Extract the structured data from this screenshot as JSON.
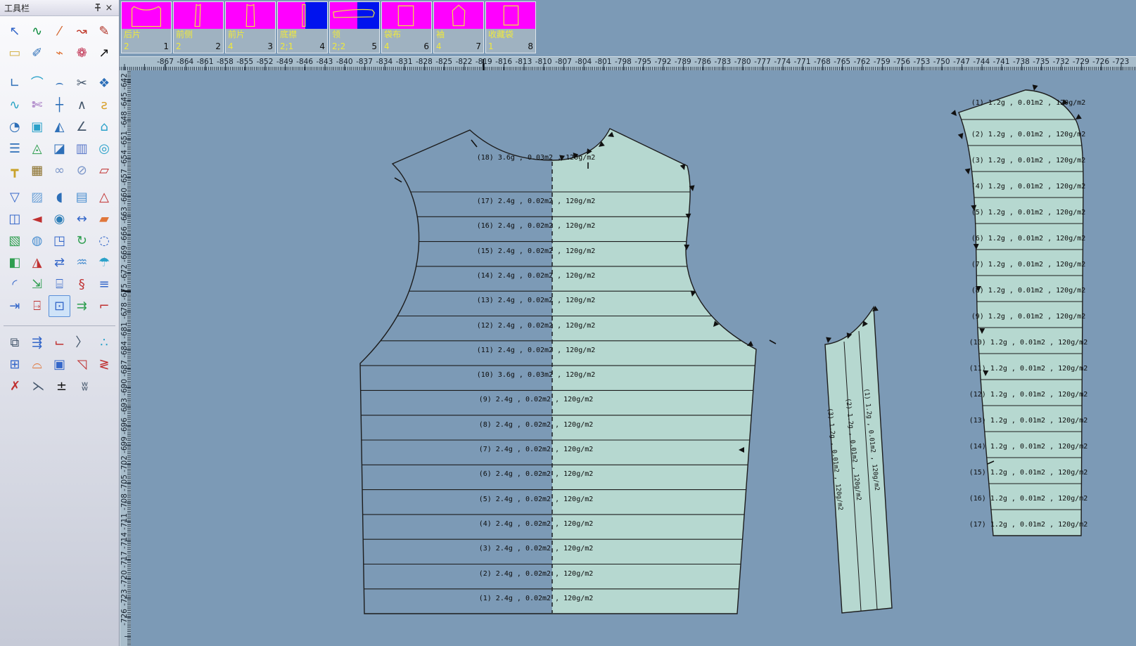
{
  "panel": {
    "title": "工具栏",
    "close_label": "×"
  },
  "toolbar": {
    "icons": [
      {
        "name": "pointer-select",
        "glyph": "↖",
        "color": "#3467c9"
      },
      {
        "name": "bezier-edit",
        "glyph": "∿",
        "color": "#0b8a3c"
      },
      {
        "name": "sketch-line",
        "glyph": "⁄",
        "color": "#d2622a"
      },
      {
        "name": "curve-handle",
        "glyph": "↝",
        "color": "#c0392b"
      },
      {
        "name": "pencil",
        "glyph": "✎",
        "color": "#b03024"
      },
      {
        "name": "eraser",
        "glyph": "▭",
        "color": "#d4b24a"
      },
      {
        "name": "pen-node",
        "glyph": "✐",
        "color": "#2d6fb8"
      },
      {
        "name": "point-segment",
        "glyph": "⌁",
        "color": "#e0763a"
      },
      {
        "name": "ribbon-tool",
        "glyph": "❁",
        "color": "#c03050"
      },
      {
        "name": "point-arrow",
        "glyph": "↗",
        "color": "#111111"
      },
      {
        "name": "corner-angle",
        "glyph": "∟",
        "color": "#2d6fb8"
      },
      {
        "name": "arc-tool",
        "glyph": "⌒",
        "color": "#2aa1c9"
      },
      {
        "name": "arc-nodes",
        "glyph": "⌢",
        "color": "#2d6fb8"
      },
      {
        "name": "scissors",
        "glyph": "✂",
        "color": "#44566b"
      },
      {
        "name": "seal-badge",
        "glyph": "❖",
        "color": "#2d6fb8"
      },
      {
        "name": "chain-points",
        "glyph": "∿",
        "color": "#27a3c4"
      },
      {
        "name": "snip-piece",
        "glyph": "✄",
        "color": "#8a4fb0"
      },
      {
        "name": "crosshair",
        "glyph": "┼",
        "color": "#2d6fb8"
      },
      {
        "name": "compass",
        "glyph": "∧",
        "color": "#44566b"
      },
      {
        "name": "measure-curve",
        "glyph": "ƨ",
        "color": "#d8a02a"
      },
      {
        "name": "protractor",
        "glyph": "◔",
        "color": "#2d6fb8"
      },
      {
        "name": "group-boxes",
        "glyph": "▣",
        "color": "#2aa1c9"
      },
      {
        "name": "mirror-triangle",
        "glyph": "◭",
        "color": "#2d6fb8"
      },
      {
        "name": "angle-measure",
        "glyph": "∠",
        "color": "#44566b"
      },
      {
        "name": "pattern-cut",
        "glyph": "⌂",
        "color": "#2aa1c9"
      },
      {
        "name": "line-styles",
        "glyph": "☰",
        "color": "#2d6fb8"
      },
      {
        "name": "dart-fold",
        "glyph": "◬",
        "color": "#2e9e4f"
      },
      {
        "name": "piece-shade",
        "glyph": "◪",
        "color": "#2d6fb8"
      },
      {
        "name": "pleat-tool",
        "glyph": "▥",
        "color": "#5b79c9"
      },
      {
        "name": "spiral-tool",
        "glyph": "◎",
        "color": "#2aa1c9"
      },
      {
        "name": "t-square",
        "glyph": "┳",
        "color": "#c9a22a"
      },
      {
        "name": "seam-gauge",
        "glyph": "▦",
        "color": "#8a6f2a"
      },
      {
        "name": "link-tool",
        "glyph": "∞",
        "color": "#7b96c9"
      },
      {
        "name": "unlink-tool",
        "glyph": "⊘",
        "color": "#7b96c9"
      },
      {
        "name": "pocket-dashed",
        "glyph": "▱",
        "color": "#c03030"
      },
      {
        "name": "pocket-flap",
        "glyph": "▽",
        "color": "#3467c9"
      },
      {
        "name": "quilt-piece",
        "glyph": "▨",
        "color": "#6fa3d8"
      },
      {
        "name": "notch-piece",
        "glyph": "◖",
        "color": "#2d6fb8"
      },
      {
        "name": "stripe-piece",
        "glyph": "▤",
        "color": "#4a8fd0"
      },
      {
        "name": "red-outline-piece",
        "glyph": "△",
        "color": "#c03030"
      },
      {
        "name": "divide-piece",
        "glyph": "◫",
        "color": "#3467c9"
      },
      {
        "name": "arrow-piece",
        "glyph": "◄",
        "color": "#c03030"
      },
      {
        "name": "button-tool",
        "glyph": "◉",
        "color": "#2e7fb8"
      },
      {
        "name": "width-arrows",
        "glyph": "↔",
        "color": "#3467c9"
      },
      {
        "name": "orange-piece",
        "glyph": "▰",
        "color": "#e0763a"
      },
      {
        "name": "terrain-piece",
        "glyph": "▧",
        "color": "#2e9e4f"
      },
      {
        "name": "collar-rounds",
        "glyph": "◍",
        "color": "#4a8fd0"
      },
      {
        "name": "small-piece",
        "glyph": "◳",
        "color": "#3467c9"
      },
      {
        "name": "rotate-piece",
        "glyph": "↻",
        "color": "#2e9e4f"
      },
      {
        "name": "dotted-piece",
        "glyph": "◌",
        "color": "#3467c9"
      },
      {
        "name": "pair-pieces",
        "glyph": "◧",
        "color": "#2e9e4f"
      },
      {
        "name": "red-mark-piece",
        "glyph": "◮",
        "color": "#c03030"
      },
      {
        "name": "swap-pieces",
        "glyph": "⇄",
        "color": "#3467c9"
      },
      {
        "name": "curtain-drape",
        "glyph": "♒",
        "color": "#4a8fd0"
      },
      {
        "name": "beach-scene",
        "glyph": "☂",
        "color": "#2aa1c9"
      },
      {
        "name": "quad-curve",
        "glyph": "◜",
        "color": "#3467c9"
      },
      {
        "name": "measure-points",
        "glyph": "⇲",
        "color": "#2e9e4f"
      },
      {
        "name": "sewing-machine",
        "glyph": "⌸",
        "color": "#3467c9"
      },
      {
        "name": "s-hooks",
        "glyph": "§",
        "color": "#c03030"
      },
      {
        "name": "fabric-stack",
        "glyph": "≡",
        "color": "#3467c9"
      },
      {
        "name": "door-arrow",
        "glyph": "⇥",
        "color": "#3467c9"
      },
      {
        "name": "anchor-dash",
        "glyph": "⍈",
        "color": "#c03030"
      },
      {
        "name": "marquee-select",
        "glyph": "⊡",
        "color": "#3467c9",
        "selected": true
      },
      {
        "name": "seam-inward",
        "glyph": "⇉",
        "color": "#2e9e4f"
      },
      {
        "name": "seam-corner",
        "glyph": "⌐",
        "color": "#c03030"
      },
      {
        "name": "overlap-pieces",
        "glyph": "⧉",
        "color": "#44566b"
      },
      {
        "name": "fly-arrows",
        "glyph": "⇶",
        "color": "#3467c9"
      },
      {
        "name": "piece-corner",
        "glyph": "⌙",
        "color": "#c03030"
      },
      {
        "name": "curve-notch",
        "glyph": "〉",
        "color": "#44566b"
      },
      {
        "name": "node-chain",
        "glyph": "∴",
        "color": "#2aa1c9"
      },
      {
        "name": "box-export",
        "glyph": "⊞",
        "color": "#3467c9"
      },
      {
        "name": "rainbow-arc",
        "glyph": "⌓",
        "color": "#e0763a"
      },
      {
        "name": "nested-boxes",
        "glyph": "▣",
        "color": "#3467c9"
      },
      {
        "name": "corner-pin",
        "glyph": "◹",
        "color": "#c03030"
      },
      {
        "name": "zigzag-measure",
        "glyph": "≷",
        "color": "#c03030"
      },
      {
        "name": "arrow-cross",
        "glyph": "✗",
        "color": "#c03030"
      },
      {
        "name": "angle-split",
        "glyph": "⋋",
        "color": "#44566b"
      },
      {
        "name": "plusminus-seam",
        "glyph": "±",
        "color": "#111111"
      },
      {
        "name": "pleat-marks",
        "glyph": "ʬ",
        "color": "#44566b"
      }
    ]
  },
  "tiles": [
    {
      "label": "后片",
      "count": "2",
      "index": "1",
      "shape": "back-piece",
      "blue_half": false
    },
    {
      "label": "前侧",
      "count": "2",
      "index": "2",
      "shape": "side-strip",
      "blue_half": false
    },
    {
      "label": "前片",
      "count": "4",
      "index": "3",
      "shape": "front-strip",
      "blue_half": false
    },
    {
      "label": "底襟",
      "count": "2;1",
      "index": "4",
      "shape": "placket-strip",
      "blue_half": true
    },
    {
      "label": "领",
      "count": "2;2",
      "index": "5",
      "shape": "collar-band",
      "blue_half": true
    },
    {
      "label": "袋布",
      "count": "4",
      "index": "6",
      "shape": "pocket-rect",
      "blue_half": false
    },
    {
      "label": "袖",
      "count": "4",
      "index": "7",
      "shape": "sleeve-cap",
      "blue_half": false
    },
    {
      "label": "收藏袋",
      "count": "1",
      "index": "8",
      "shape": "bag-rect",
      "blue_half": false
    }
  ],
  "rulers": {
    "horizontal": {
      "labels": [
        "-867",
        "-864",
        "-861",
        "-858",
        "-855",
        "-852",
        "-849",
        "-846",
        "-843",
        "-840",
        "-837",
        "-834",
        "-831",
        "-828",
        "-825",
        "-822",
        "-819",
        "-816",
        "-813",
        "-810",
        "-807",
        "-804",
        "-801",
        "-798",
        "-795",
        "-792",
        "-789",
        "-786",
        "-783",
        "-780",
        "-777",
        "-774",
        "-771",
        "-768",
        "-765",
        "-762",
        "-759",
        "-756",
        "-753",
        "-750",
        "-747",
        "-744",
        "-741",
        "-738",
        "-735",
        "-732",
        "-729",
        "-726",
        "-723"
      ]
    },
    "vertical": {
      "labels": [
        "-642",
        "-645",
        "-648",
        "-651",
        "-654",
        "-657",
        "-660",
        "-663",
        "-666",
        "-669",
        "-672",
        "-675",
        "-678",
        "-681",
        "-684",
        "-687",
        "-690",
        "-693",
        "-696",
        "-699",
        "-702",
        "-705",
        "-708",
        "-711",
        "-714",
        "-717",
        "-720",
        "-723",
        "-726"
      ]
    }
  },
  "canvas": {
    "colors": {
      "background": "#7c9ab6",
      "piece_fill": "#b6d8d0",
      "outline": "#1c1c1c",
      "tile_magenta": "#ff00ff",
      "tile_blue": "#0013ee",
      "label_yellow": "#f0e93c"
    },
    "main_piece": {
      "rows": [
        "(18) 3.6g , 0.03m2 , 120g/m2",
        "(17) 2.4g , 0.02m2 , 120g/m2",
        "(16) 2.4g , 0.02m2 , 120g/m2",
        "(15) 2.4g , 0.02m2 , 120g/m2",
        "(14) 2.4g , 0.02m2 , 120g/m2",
        "(13) 2.4g , 0.02m2 , 120g/m2",
        "(12) 2.4g , 0.02m2 , 120g/m2",
        "(11) 2.4g , 0.02m2 , 120g/m2",
        "(10) 3.6g , 0.03m2 , 120g/m2",
        "(9) 2.4g , 0.02m2 , 120g/m2",
        "(8) 2.4g , 0.02m2 , 120g/m2",
        "(7) 2.4g , 0.02m2 , 120g/m2",
        "(6) 2.4g , 0.02m2 , 120g/m2",
        "(5) 2.4g , 0.02m2 , 120g/m2",
        "(4) 2.4g , 0.02m2 , 120g/m2",
        "(3) 2.4g , 0.02m2 , 120g/m2",
        "(2) 2.4g , 0.02m2 , 120g/m2",
        "(1) 2.4g , 0.02m2 , 120g/m2"
      ]
    },
    "side_piece": {
      "rows": [
        "(1) 1.2g , 0.01m2 , 120g/m2",
        "(2) 1.2g , 0.01m2 , 120g/m2",
        "(3) 1.2g , 0.01m2 , 120g/m2",
        "(4) 1.2g , 0.01m2 , 120g/m2",
        "(5) 1.2g , 0.01m2 , 120g/m2",
        "(6) 1.2g , 0.01m2 , 120g/m2",
        "(7) 1.2g , 0.01m2 , 120g/m2",
        "(8) 1.2g , 0.01m2 , 120g/m2",
        "(9) 1.2g , 0.01m2 , 120g/m2",
        "(10) 1.2g , 0.01m2 , 120g/m2",
        "(11) 1.2g , 0.01m2 , 120g/m2",
        "(12) 1.2g , 0.01m2 , 120g/m2",
        "(13) 1.2g , 0.01m2 , 120g/m2",
        "(14) 1.2g , 0.01m2 , 120g/m2",
        "(15) 1.2g , 0.01m2 , 120g/m2",
        "(16) 1.2g , 0.01m2 , 120g/m2",
        "(17) 1.2g , 0.01m2 , 120g/m2"
      ]
    },
    "strip_piece": {
      "labels": [
        "(1) 1.2g , 0.01m2 , 120g/m2",
        "(2) 1.2g , 0.01m2 , 120g/m2",
        "(3) 1.2g , 0.01m2 , 120g/m2"
      ]
    }
  }
}
